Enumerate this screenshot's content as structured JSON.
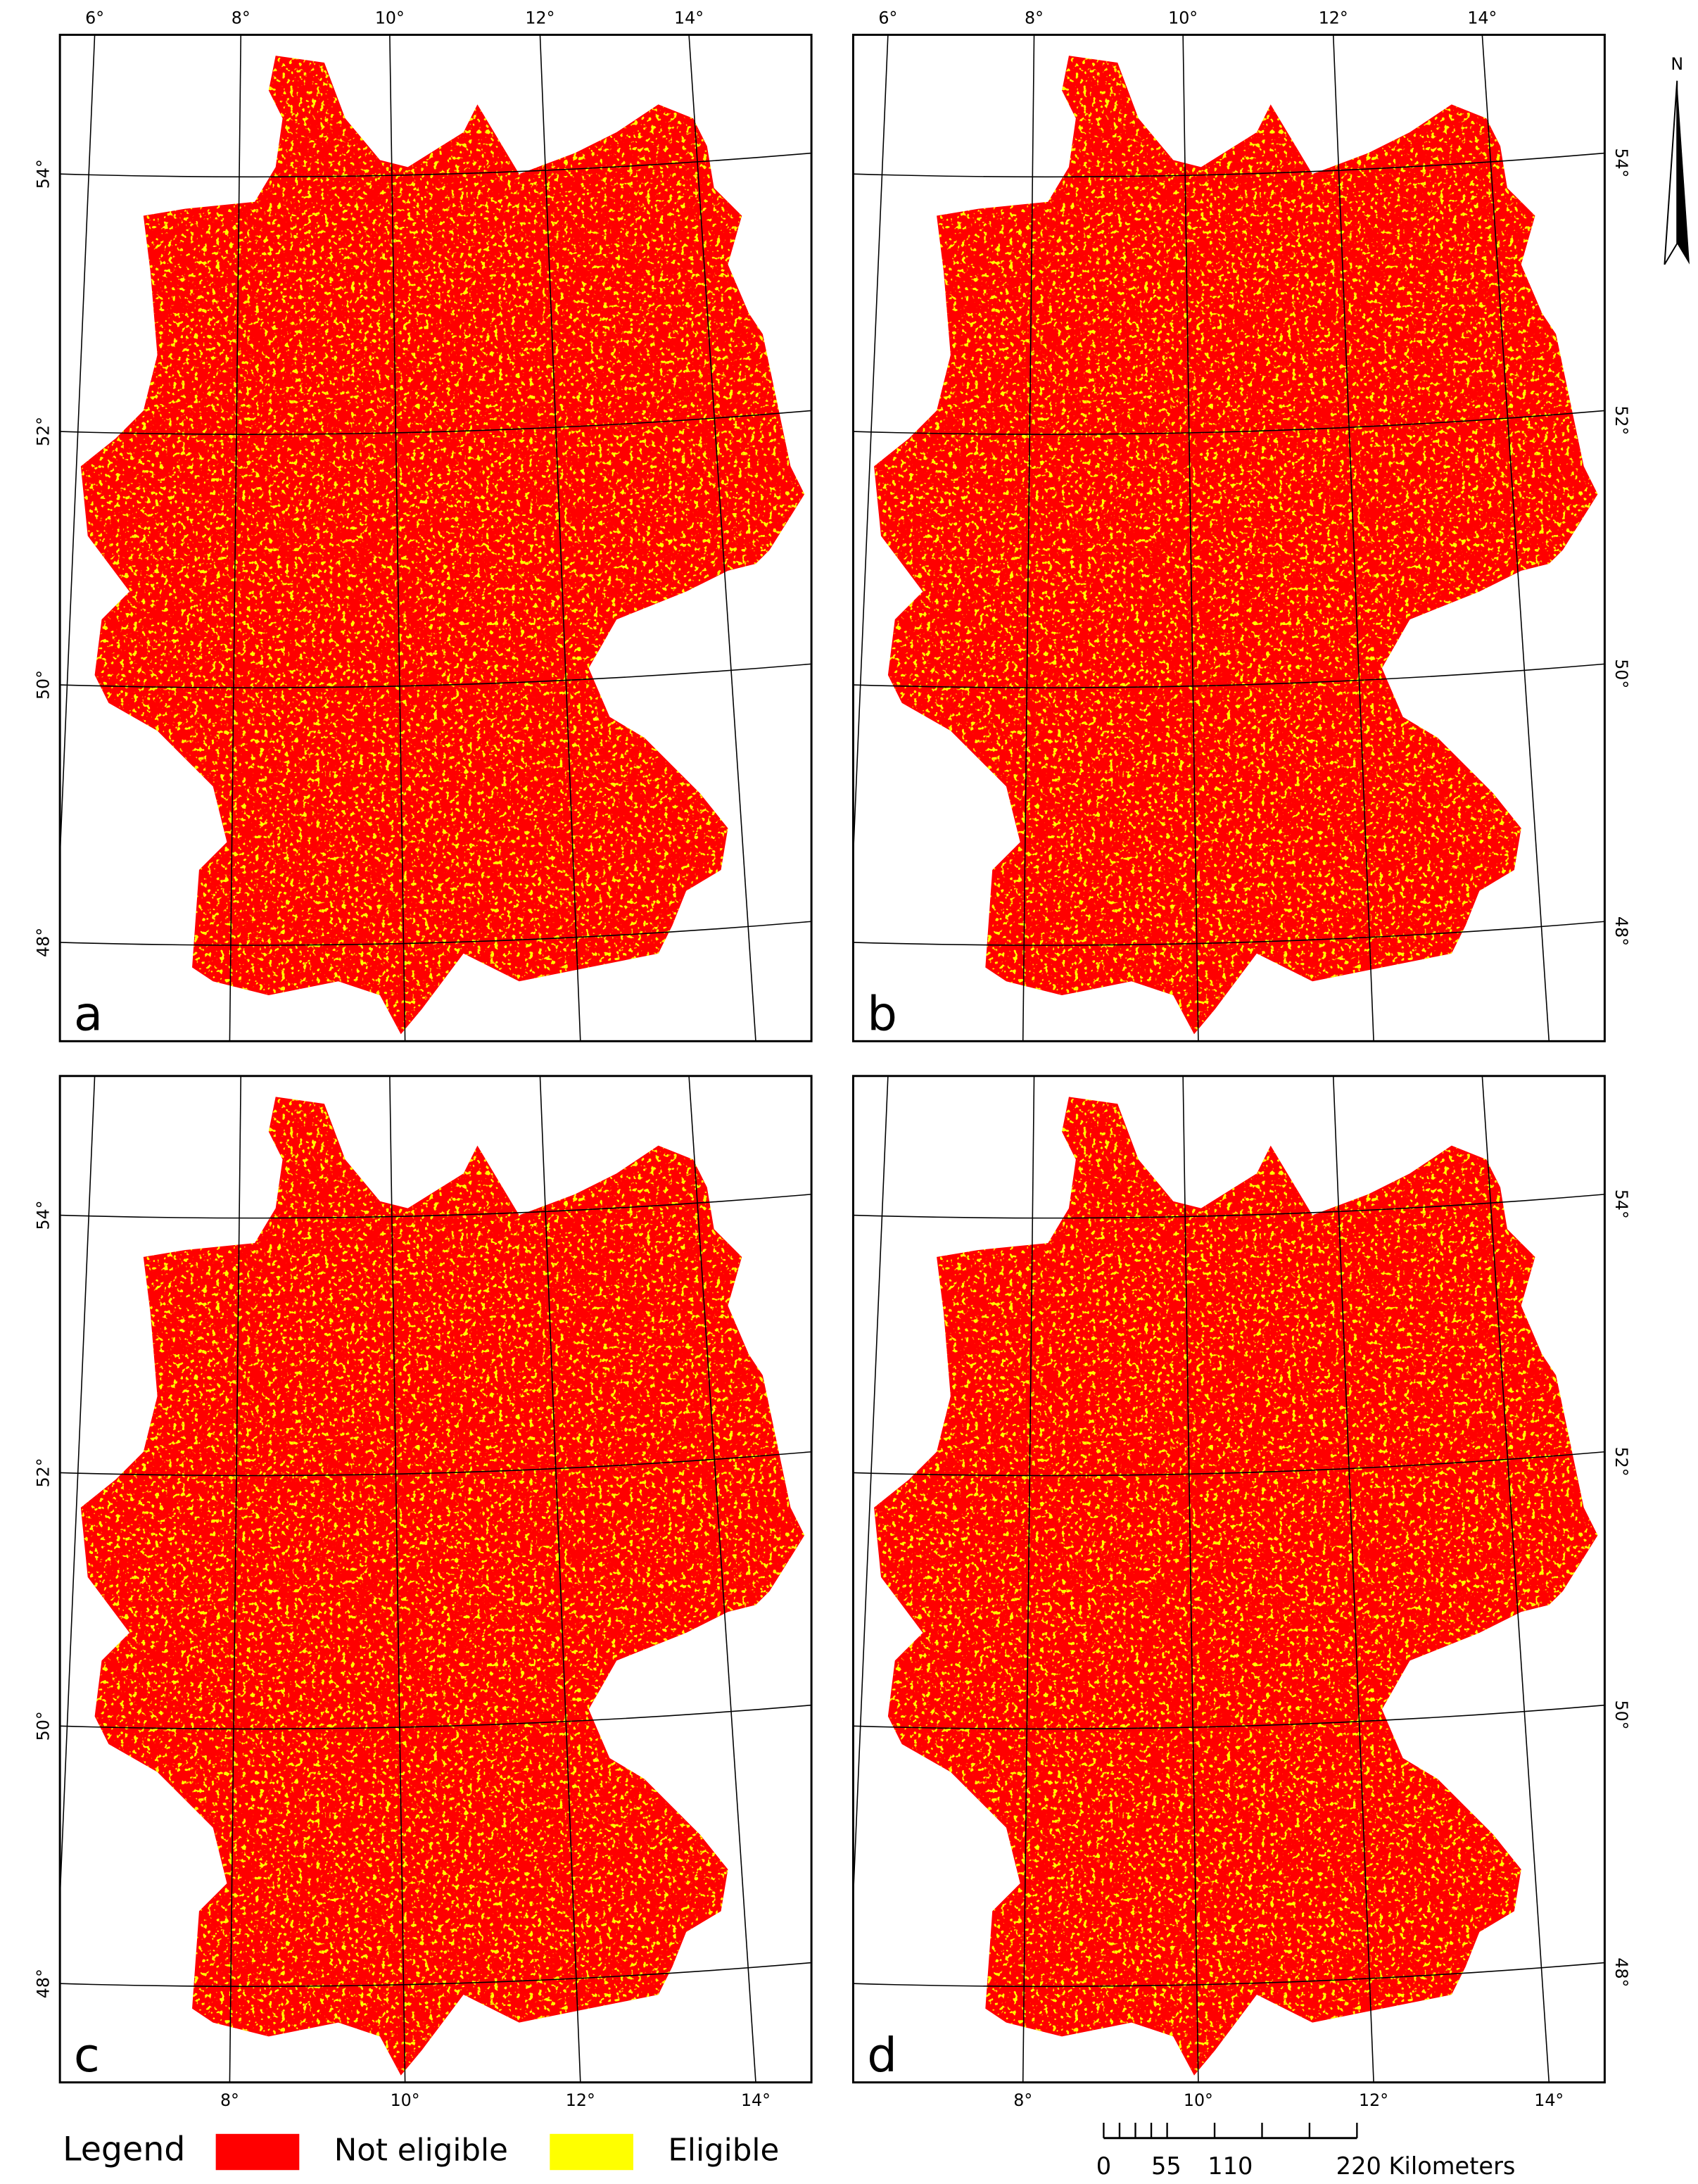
{
  "panels": [
    {
      "label": "a",
      "top_labels": [
        "6°",
        "8°",
        "10°",
        "12°",
        "14°"
      ],
      "left_labels": [
        "54°",
        "52°",
        "50°",
        "48°"
      ]
    },
    {
      "label": "b",
      "top_labels": [
        "6°",
        "8°",
        "10°",
        "12°",
        "14°"
      ],
      "right_labels": [
        "54°",
        "52°",
        "50°",
        "48°"
      ]
    },
    {
      "label": "c",
      "left_labels": [
        "54°",
        "52°",
        "50°",
        "48°"
      ],
      "bottom_labels": [
        "8°",
        "10°",
        "12°",
        "14°"
      ]
    },
    {
      "label": "d",
      "right_labels": [
        "54°",
        "52°",
        "50°",
        "48°"
      ],
      "bottom_labels": [
        "8°",
        "10°",
        "12°",
        "14°"
      ]
    }
  ],
  "legend": {
    "title": "Legend",
    "items": [
      "Not eligible",
      "Eligible"
    ]
  },
  "scale_bar": {
    "labels": [
      "0",
      "55",
      "110",
      "220 Kilometers"
    ]
  },
  "north_arrow": {
    "label": "N"
  }
}
